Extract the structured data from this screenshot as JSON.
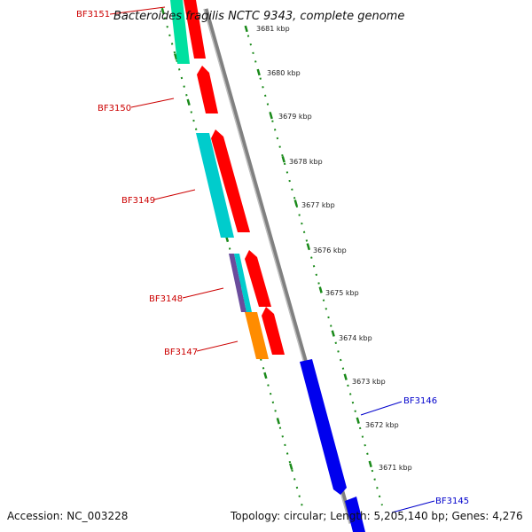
{
  "title": "Bacteroides fragilis NCTC 9343, complete genome",
  "footer": {
    "accession": "Accession: NC_003228",
    "summary": "Topology: circular; Length: 5,205,140 bp; Genes: 4,276"
  },
  "ticks": [
    "3681 kbp",
    "3680 kbp",
    "3679 kbp",
    "3678 kbp",
    "3677 kbp",
    "3676 kbp",
    "3675 kbp",
    "3674 kbp",
    "3673 kbp",
    "3672 kbp",
    "3671 kbp"
  ],
  "colors": {
    "backbone": "#808080",
    "tick_green": "#1a8a1a",
    "label_red": "#cc0000",
    "label_blue": "#0000cc",
    "gene_red": "#ff0000",
    "gene_blue": "#0000ee",
    "cog_cyan": "#00cccc",
    "cog_teal": "#00e0a0",
    "cog_orange": "#ff8c00",
    "cog_purple": "#6a4c9c"
  },
  "gene_labels": [
    {
      "text": "BF3151",
      "color": "#cc0000"
    },
    {
      "text": "BF3150",
      "color": "#cc0000"
    },
    {
      "text": "BF3149",
      "color": "#cc0000"
    },
    {
      "text": "BF3148",
      "color": "#cc0000"
    },
    {
      "text": "BF3147",
      "color": "#cc0000"
    },
    {
      "text": "BF3146",
      "color": "#0000cc"
    },
    {
      "text": "BF3145",
      "color": "#0000cc"
    }
  ]
}
